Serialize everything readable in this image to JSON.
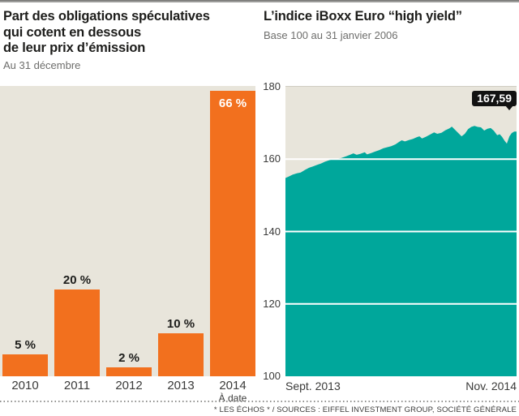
{
  "page": {
    "footer": "* LES ÉCHOS * / SOURCES : EIFFEL INVESTMENT GROUP, SOCIÉTÉ GÉNÉRALE"
  },
  "left_chart": {
    "title": "Part des obligations spéculatives\nqui cotent en dessous\nde leur prix d’émission",
    "subtitle": "Au 31 décembre",
    "last_bar_note": "À date"
  },
  "right_chart": {
    "title": "L’indice iBoxx Euro “high yield”",
    "subtitle": "Base 100 au 31 janvier 2006",
    "xlabel_left": "Sept. 2013",
    "xlabel_right": "Nov. 2014",
    "end_value_label": "167,59"
  },
  "colors": {
    "bar_orange": "#F2701E",
    "area_teal": "#00A79B",
    "plot_background": "#E8E5DB",
    "tag_black": "#121212",
    "gridline_white": "#FFFFFF"
  },
  "chart_data": [
    {
      "type": "bar",
      "title": "Part des obligations spéculatives qui cotent en dessous de leur prix d’émission",
      "subtitle": "Au 31 décembre",
      "categories": [
        "2010",
        "2011",
        "2012",
        "2013",
        "2014"
      ],
      "values": [
        5,
        20,
        2,
        10,
        66
      ],
      "value_labels": [
        "5 %",
        "20 %",
        "2 %",
        "10 %",
        "66 %"
      ],
      "label_inside": [
        false,
        false,
        false,
        false,
        true
      ],
      "last_category_note": "À date",
      "unit": "%",
      "ylim": [
        0,
        70
      ],
      "grid": false,
      "legend": "none"
    },
    {
      "type": "area",
      "title": "L’indice iBoxx Euro “high yield”",
      "subtitle": "Base 100 au 31 janvier 2006",
      "x_range": [
        "Sept. 2013",
        "Nov. 2014"
      ],
      "ylim": [
        100,
        180
      ],
      "yticks": [
        180,
        160,
        140,
        120,
        100
      ],
      "gridlines": [
        160,
        140,
        120
      ],
      "grid": true,
      "legend": "none",
      "end_value": 167.59,
      "end_value_label": "167,59",
      "points": [
        [
          0.0,
          154.8
        ],
        [
          0.014,
          155.2
        ],
        [
          0.031,
          155.7
        ],
        [
          0.049,
          156.1
        ],
        [
          0.066,
          156.3
        ],
        [
          0.084,
          157.0
        ],
        [
          0.101,
          157.6
        ],
        [
          0.119,
          158.0
        ],
        [
          0.136,
          158.4
        ],
        [
          0.154,
          158.8
        ],
        [
          0.171,
          159.3
        ],
        [
          0.189,
          159.7
        ],
        [
          0.206,
          160.0
        ],
        [
          0.224,
          160.1
        ],
        [
          0.241,
          160.3
        ],
        [
          0.259,
          160.7
        ],
        [
          0.276,
          161.1
        ],
        [
          0.294,
          161.6
        ],
        [
          0.308,
          161.2
        ],
        [
          0.325,
          161.5
        ],
        [
          0.343,
          161.9
        ],
        [
          0.353,
          161.3
        ],
        [
          0.371,
          161.7
        ],
        [
          0.388,
          162.1
        ],
        [
          0.406,
          162.5
        ],
        [
          0.423,
          163.0
        ],
        [
          0.441,
          163.3
        ],
        [
          0.458,
          163.6
        ],
        [
          0.476,
          164.1
        ],
        [
          0.493,
          164.8
        ],
        [
          0.503,
          165.2
        ],
        [
          0.517,
          164.9
        ],
        [
          0.535,
          165.3
        ],
        [
          0.552,
          165.6
        ],
        [
          0.57,
          166.1
        ],
        [
          0.58,
          166.3
        ],
        [
          0.591,
          165.7
        ],
        [
          0.608,
          166.2
        ],
        [
          0.626,
          166.8
        ],
        [
          0.643,
          167.4
        ],
        [
          0.657,
          167.0
        ],
        [
          0.675,
          167.3
        ],
        [
          0.692,
          168.0
        ],
        [
          0.71,
          168.5
        ],
        [
          0.72,
          169.0
        ],
        [
          0.734,
          168.1
        ],
        [
          0.748,
          167.2
        ],
        [
          0.762,
          166.3
        ],
        [
          0.776,
          167.0
        ],
        [
          0.79,
          168.3
        ],
        [
          0.804,
          168.9
        ],
        [
          0.818,
          169.2
        ],
        [
          0.832,
          168.9
        ],
        [
          0.846,
          168.8
        ],
        [
          0.86,
          167.9
        ],
        [
          0.874,
          168.4
        ],
        [
          0.888,
          168.6
        ],
        [
          0.902,
          167.8
        ],
        [
          0.916,
          166.6
        ],
        [
          0.927,
          166.9
        ],
        [
          0.937,
          166.2
        ],
        [
          0.948,
          165.1
        ],
        [
          0.958,
          164.3
        ],
        [
          0.969,
          166.3
        ],
        [
          0.979,
          167.2
        ],
        [
          0.99,
          167.6
        ],
        [
          1.0,
          167.6
        ]
      ]
    }
  ]
}
